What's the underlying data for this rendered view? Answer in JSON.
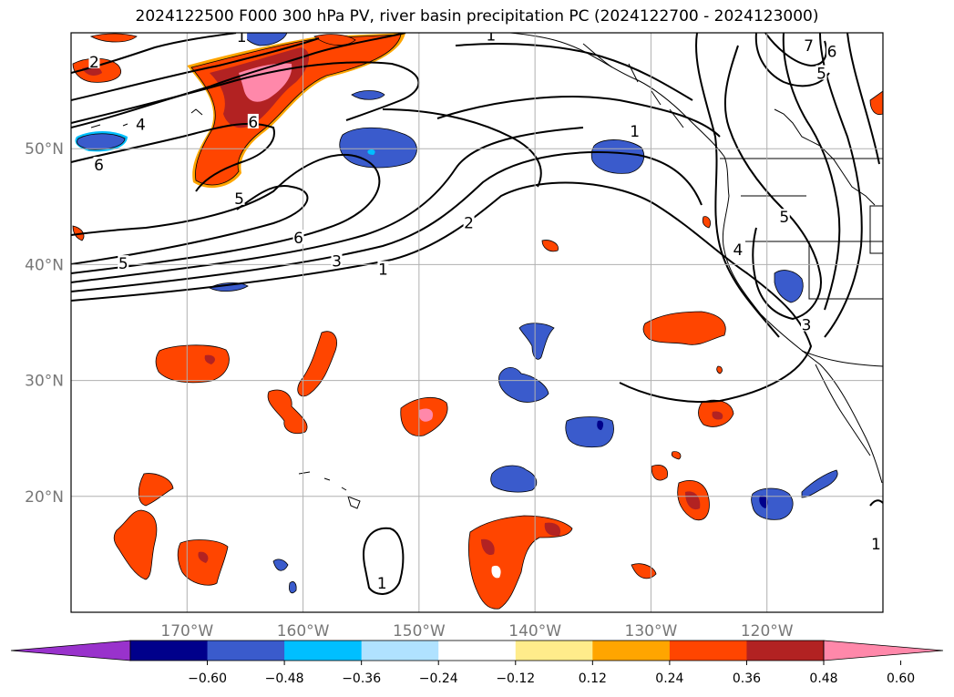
{
  "title": "2024122500 F000 300 hPa PV, river basin precipitation PC (2024122700 - 2024123000)",
  "map": {
    "lon_range": [
      -180,
      -110
    ],
    "lat_range": [
      10,
      60
    ],
    "lon_ticks": [
      {
        "value": -170,
        "label": "170°W"
      },
      {
        "value": -160,
        "label": "160°W"
      },
      {
        "value": -150,
        "label": "150°W"
      },
      {
        "value": -140,
        "label": "140°W"
      },
      {
        "value": -130,
        "label": "130°W"
      },
      {
        "value": -120,
        "label": "120°W"
      }
    ],
    "lat_ticks": [
      {
        "value": 20,
        "label": "20°N"
      },
      {
        "value": 30,
        "label": "30°N"
      },
      {
        "value": 40,
        "label": "40°N"
      },
      {
        "value": 50,
        "label": "50°N"
      }
    ],
    "grid": true
  },
  "colorbar": {
    "colors": [
      "#9932cc",
      "#00008b",
      "#3a5bcc",
      "#00bfff",
      "#b0e2ff",
      "#ffffff",
      "#ffec8b",
      "#ffa500",
      "#ff4500",
      "#b22222",
      "#ff88aa"
    ],
    "ticks": [
      "−0.60",
      "−0.48",
      "−0.36",
      "−0.24",
      "−0.12",
      "0.12",
      "0.24",
      "0.36",
      "0.48",
      "0.60"
    ]
  },
  "contour_labels": [
    {
      "text": "2",
      "lon": -178,
      "lat": 57.5
    },
    {
      "text": "4",
      "lon": -174,
      "lat": 52.1
    },
    {
      "text": "6",
      "lon": -177.6,
      "lat": 48.6
    },
    {
      "text": "6",
      "lon": -164.3,
      "lat": 52.3
    },
    {
      "text": "5",
      "lon": -165.5,
      "lat": 45.7
    },
    {
      "text": "6",
      "lon": -160.4,
      "lat": 42.3
    },
    {
      "text": "5",
      "lon": -175.5,
      "lat": 40.1
    },
    {
      "text": "3",
      "lon": -157.1,
      "lat": 40.3
    },
    {
      "text": "1",
      "lon": -153.1,
      "lat": 39.6
    },
    {
      "text": "2",
      "lon": -145.7,
      "lat": 43.6
    },
    {
      "text": "1",
      "lon": -131.4,
      "lat": 51.5
    },
    {
      "text": "1",
      "lon": -165.3,
      "lat": 59.7
    },
    {
      "text": "1",
      "lon": -143.8,
      "lat": 59.8
    },
    {
      "text": "7",
      "lon": -116.4,
      "lat": 58.9
    },
    {
      "text": "6",
      "lon": -114.4,
      "lat": 58.4
    },
    {
      "text": "5",
      "lon": -115.3,
      "lat": 56.5
    },
    {
      "text": "5",
      "lon": -118.5,
      "lat": 44.1
    },
    {
      "text": "4",
      "lon": -122.5,
      "lat": 41.3
    },
    {
      "text": "3",
      "lon": -116.6,
      "lat": 34.8
    },
    {
      "text": "1",
      "lon": -153.2,
      "lat": 12.5
    },
    {
      "text": "1",
      "lon": -110.6,
      "lat": 15.9
    }
  ]
}
